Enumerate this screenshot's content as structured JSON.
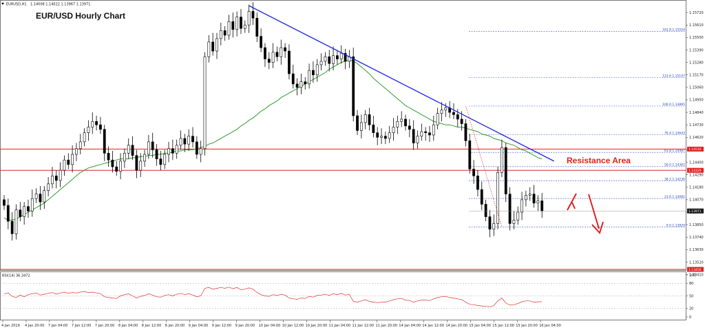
{
  "header": {
    "symbol": "EURUSD,H1",
    "ohlc": "1.14008 1.14022 1.13967 1.13971"
  },
  "title": "EUR/USD Hourly Chart",
  "resistance_label": "Resistance Area",
  "rsi_label": "RSI(14) 36.3472",
  "colors": {
    "candle": "#000000",
    "ma": "#2e9b2e",
    "trendline": "#1c22e6",
    "horizontal_lines": "#e02020",
    "fibonacci": "#3a55d0",
    "arrows": "#e02020",
    "rsi": "#e03030",
    "current_price_tag": "#1a1a1a"
  },
  "chart_data": [
    {
      "type": "candlestick",
      "title": "EUR/USD Hourly Chart",
      "ylim": [
        1.1345,
        1.1583
      ],
      "y_ticks": [
        "1.15720",
        "1.15610",
        "1.15500",
        "1.15390",
        "1.15280",
        "1.15170",
        "1.15060",
        "1.14950",
        "1.14840",
        "1.14730",
        "1.14620",
        "1.14510",
        "1.14400",
        "1.14290",
        "1.14180",
        "1.14070",
        "1.13960",
        "1.13850",
        "1.13740",
        "1.13630",
        "1.13520",
        "1.13410"
      ],
      "x_ticks": [
        "4 Jan 2019",
        "4 Jan 20:00",
        "7 Jan 04:00",
        "7 Jan 12:00",
        "7 Jan 20:00",
        "8 Jan 04:00",
        "8 Jan 12:00",
        "8 Jan 20:00",
        "9 Jan 04:00",
        "9 Jan 12:00",
        "9 Jan 20:00",
        "10 Jan 04:00",
        "10 Jan 12:00",
        "10 Jan 20:00",
        "11 Jan 04:00",
        "11 Jan 12:00",
        "11 Jan 20:00",
        "14 Jan 04:00",
        "14 Jan 12:00",
        "14 Jan 20:00",
        "15 Jan 04:00",
        "15 Jan 12:00",
        "15 Jan 20:00",
        "16 Jan 04:00"
      ],
      "closes": [
        1.1402,
        1.1388,
        1.1377,
        1.1398,
        1.1392,
        1.1401,
        1.1397,
        1.1408,
        1.1412,
        1.1405,
        1.1415,
        1.1421,
        1.1428,
        1.1424,
        1.1433,
        1.1442,
        1.1438,
        1.1447,
        1.1452,
        1.1458,
        1.1466,
        1.1471,
        1.1476,
        1.1473,
        1.1469,
        1.1448,
        1.1442,
        1.1436,
        1.1432,
        1.1441,
        1.1448,
        1.1455,
        1.1446,
        1.1433,
        1.1441,
        1.1447,
        1.1458,
        1.1451,
        1.1443,
        1.1438,
        1.1447,
        1.1452,
        1.1448,
        1.1455,
        1.1461,
        1.1456,
        1.1463,
        1.1458,
        1.1447,
        1.1452,
        1.1533,
        1.1546,
        1.1538,
        1.1549,
        1.1556,
        1.1552,
        1.1564,
        1.1557,
        1.1568,
        1.1558,
        1.1561,
        1.1573,
        1.1567,
        1.1551,
        1.1541,
        1.1531,
        1.1528,
        1.1537,
        1.1533,
        1.1541,
        1.1538,
        1.1518,
        1.1509,
        1.1506,
        1.1511,
        1.1509,
        1.1521,
        1.1517,
        1.1526,
        1.1529,
        1.1533,
        1.1527,
        1.1534,
        1.1531,
        1.1536,
        1.1529,
        1.1533,
        1.1481,
        1.1468,
        1.1475,
        1.1482,
        1.1473,
        1.1466,
        1.1462,
        1.1463,
        1.1461,
        1.1466,
        1.1471,
        1.1476,
        1.1478,
        1.1472,
        1.1469,
        1.1457,
        1.1463,
        1.1467,
        1.1466,
        1.1464,
        1.1473,
        1.1483,
        1.1486,
        1.1488,
        1.1484,
        1.1482,
        1.1478,
        1.1474,
        1.1459,
        1.1434,
        1.1428,
        1.1416,
        1.1403,
        1.1392,
        1.1381,
        1.1386,
        1.1431,
        1.1453,
        1.1412,
        1.1386,
        1.1389,
        1.1396,
        1.1407,
        1.1411,
        1.1412,
        1.1404,
        1.1406,
        1.1397
      ],
      "ma_levels": [
        1.1391,
        1.1389,
        1.1389,
        1.139,
        1.1392,
        1.1394,
        1.1396,
        1.1398,
        1.14,
        1.1402,
        1.1404,
        1.1407,
        1.141,
        1.1413,
        1.1416,
        1.1419,
        1.1422,
        1.1425,
        1.1428,
        1.1431,
        1.1433,
        1.1435,
        1.1436,
        1.1437,
        1.1438,
        1.1439,
        1.144,
        1.1441,
        1.1442,
        1.1443,
        1.1443,
        1.1443,
        1.1444,
        1.1444,
        1.1445,
        1.1445,
        1.1446,
        1.1446,
        1.1447,
        1.1447,
        1.1448,
        1.1448,
        1.1449,
        1.145,
        1.145,
        1.1451,
        1.1451,
        1.1451,
        1.1452,
        1.1453,
        1.1454,
        1.1456,
        1.1457,
        1.1459,
        1.1461,
        1.1463,
        1.1465,
        1.1467,
        1.1469,
        1.1472,
        1.1474,
        1.1477,
        1.1479,
        1.1482,
        1.1485,
        1.1487,
        1.149,
        1.1492,
        1.1494,
        1.1497,
        1.1499,
        1.1501,
        1.1503,
        1.1505,
        1.1507,
        1.1509,
        1.1511,
        1.1513,
        1.1515,
        1.1517,
        1.1519,
        1.1522,
        1.1524,
        1.1526,
        1.1528,
        1.1529,
        1.153,
        1.1529,
        1.1527,
        1.1524,
        1.1521,
        1.1518,
        1.1514,
        1.1511,
        1.1508,
        1.1505,
        1.1502,
        1.1499,
        1.1496,
        1.1493,
        1.149,
        1.1488,
        1.1486,
        1.1484,
        1.1482,
        1.148,
        1.1478,
        1.1476,
        1.1475,
        1.1474,
        1.1473,
        1.1473,
        1.1472,
        1.1471,
        1.1471,
        1.147,
        1.1469,
        1.1468,
        1.1467,
        1.1465,
        1.1464,
        1.1463,
        1.1461,
        1.146,
        1.1459,
        1.1457,
        1.1456,
        1.1455,
        1.1453,
        1.1451,
        1.145,
        1.1448,
        1.1446,
        1.1444,
        1.1443
      ],
      "price_tags": {
        "resistance_upper": "1.14516",
        "resistance_lower": "1.14329",
        "support": "1.13456",
        "current": "1.13971"
      },
      "fibonacci_levels": [
        {
          "label": "161.8 1.15554",
          "value": 1.15554
        },
        {
          "label": "123.6 1.15147",
          "value": 1.15147
        },
        {
          "label": "100.0 1.14895",
          "value": 1.14895
        },
        {
          "label": "76.4 1.14643",
          "value": 1.14643
        },
        {
          "label": "61.8 1.14487",
          "value": 1.14487
        },
        {
          "label": "50.0 1.14362",
          "value": 1.14362
        },
        {
          "label": "38.2 1.14236",
          "value": 1.14236
        },
        {
          "label": "23.6 1.14081",
          "value": 1.14081
        },
        {
          "label": "0.0 1.13829",
          "value": 1.13829
        }
      ],
      "trendline": [
        {
          "bar": 61,
          "value": 1.1578
        },
        {
          "bar": 137,
          "value": 1.1441
        }
      ],
      "horizontal_lines": [
        1.14516,
        1.14329,
        1.13456
      ]
    },
    {
      "type": "line",
      "title": "RSI(14) 36.3472",
      "ylim": [
        0,
        100
      ],
      "y_ticks": [
        "100",
        "80",
        "50",
        "20",
        "0"
      ],
      "values": [
        55,
        57,
        49,
        46,
        52,
        48,
        53,
        55,
        57,
        52,
        54,
        56,
        58,
        54,
        57,
        59,
        56,
        58,
        57,
        59,
        60,
        58,
        59,
        57,
        55,
        48,
        46,
        45,
        44,
        50,
        53,
        55,
        50,
        45,
        49,
        51,
        55,
        52,
        48,
        47,
        51,
        53,
        50,
        54,
        56,
        53,
        55,
        52,
        48,
        50,
        68,
        70,
        66,
        68,
        70,
        68,
        71,
        67,
        70,
        65,
        66,
        69,
        66,
        58,
        53,
        50,
        49,
        53,
        51,
        54,
        52,
        45,
        43,
        42,
        45,
        44,
        49,
        47,
        51,
        52,
        54,
        51,
        55,
        53,
        56,
        52,
        54,
        37,
        35,
        38,
        41,
        37,
        35,
        34,
        35,
        35,
        38,
        41,
        43,
        44,
        40,
        39,
        35,
        38,
        40,
        40,
        39,
        43,
        46,
        48,
        49,
        46,
        45,
        43,
        41,
        35,
        30,
        29,
        27,
        26,
        25,
        24,
        27,
        38,
        45,
        33,
        28,
        29,
        32,
        36,
        38,
        38,
        35,
        36,
        36
      ]
    }
  ]
}
